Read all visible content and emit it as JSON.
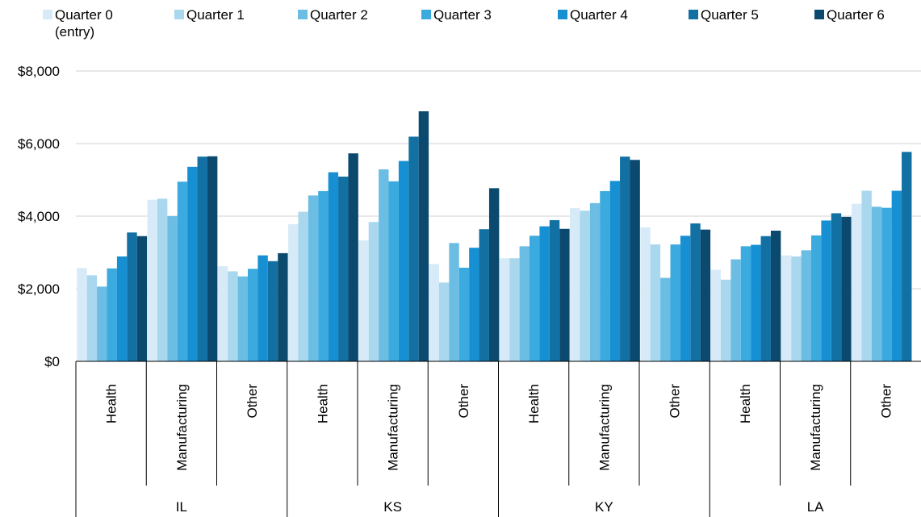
{
  "chart_data": {
    "type": "bar",
    "title": "",
    "xlabel": "",
    "ylabel": "",
    "ylim": [
      0,
      8000
    ],
    "y_ticks": [
      "$0",
      "$2,000",
      "$4,000",
      "$6,000",
      "$8,000"
    ],
    "grid": true,
    "legend_position": "top",
    "groups": [
      {
        "name": "IL",
        "categories": [
          "Health",
          "Manufacturing",
          "Other"
        ]
      },
      {
        "name": "KS",
        "categories": [
          "Health",
          "Manufacturing",
          "Other"
        ]
      },
      {
        "name": "KY",
        "categories": [
          "Health",
          "Manufacturing",
          "Other"
        ]
      },
      {
        "name": "LA",
        "categories": [
          "Health",
          "Manufacturing",
          "Other"
        ]
      }
    ],
    "series": [
      {
        "name": "Quarter 0",
        "name_line2": "(entry)",
        "color": "#d6ebf7",
        "values": [
          2570,
          4450,
          2620,
          3780,
          3330,
          2680,
          2840,
          4220,
          3690,
          2520,
          2920,
          4340
        ]
      },
      {
        "name": "Quarter 1",
        "color": "#a9d7ee",
        "values": [
          2370,
          4480,
          2480,
          4120,
          3840,
          2170,
          2840,
          4150,
          3220,
          2250,
          2890,
          4700
        ]
      },
      {
        "name": "Quarter 2",
        "color": "#6cbde3",
        "values": [
          2060,
          4000,
          2340,
          4570,
          5290,
          3260,
          3170,
          4360,
          2300,
          2810,
          3060,
          4260
        ]
      },
      {
        "name": "Quarter 3",
        "color": "#3aaadf",
        "values": [
          2560,
          4950,
          2550,
          4690,
          4960,
          2580,
          3460,
          4690,
          3220,
          3170,
          3470,
          4230
        ]
      },
      {
        "name": "Quarter 4",
        "color": "#1790d3",
        "values": [
          2890,
          5360,
          2920,
          5210,
          5520,
          3130,
          3720,
          4970,
          3460,
          3210,
          3880,
          4700
        ]
      },
      {
        "name": "Quarter 5",
        "color": "#1270a3",
        "values": [
          3550,
          5640,
          2760,
          5090,
          6190,
          3640,
          3890,
          5640,
          3800,
          3450,
          4080,
          5770
        ]
      },
      {
        "name": "Quarter 6",
        "color": "#0b4a6e",
        "values": [
          3450,
          5650,
          2980,
          5730,
          6890,
          4770,
          3650,
          5550,
          3630,
          3600,
          3980,
          null
        ]
      }
    ]
  }
}
